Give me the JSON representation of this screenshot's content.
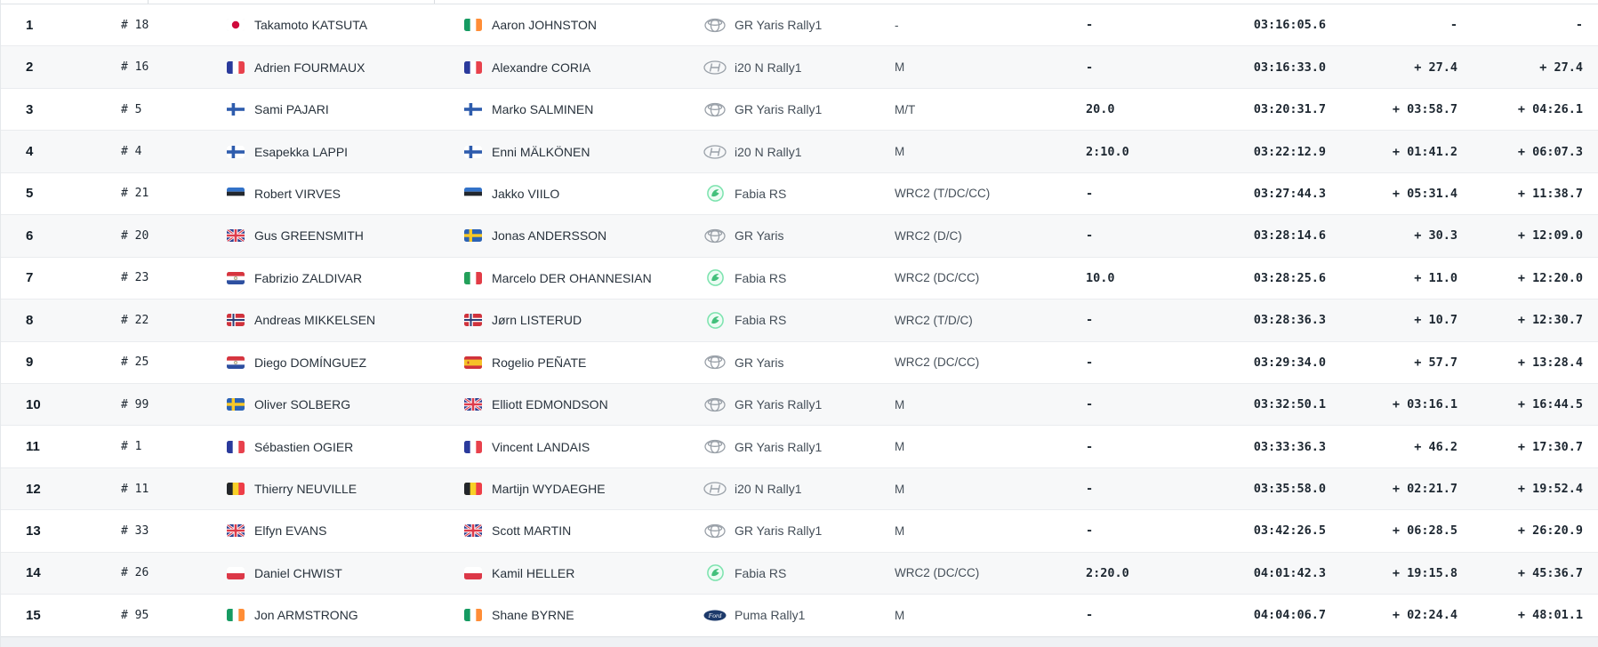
{
  "table": {
    "columns": [
      "position",
      "car_number",
      "driver",
      "co_driver",
      "car",
      "class",
      "penalty",
      "time",
      "gap_previous",
      "gap_leader"
    ],
    "rows": [
      {
        "position": "1",
        "car_number": "# 18",
        "driver": {
          "flag": "jp",
          "name": "Takamoto KATSUTA"
        },
        "co_driver": {
          "flag": "ie",
          "name": "Aaron JOHNSTON"
        },
        "car": {
          "make": "toyota",
          "model": "GR Yaris Rally1"
        },
        "class": "-",
        "penalty": "-",
        "time": "03:16:05.6",
        "gap_previous": "-",
        "gap_leader": "-"
      },
      {
        "position": "2",
        "car_number": "# 16",
        "driver": {
          "flag": "fr",
          "name": "Adrien FOURMAUX"
        },
        "co_driver": {
          "flag": "fr",
          "name": "Alexandre CORIA"
        },
        "car": {
          "make": "hyundai",
          "model": "i20 N Rally1"
        },
        "class": "M",
        "penalty": "-",
        "time": "03:16:33.0",
        "gap_previous": "+ 27.4",
        "gap_leader": "+ 27.4"
      },
      {
        "position": "3",
        "car_number": "# 5",
        "driver": {
          "flag": "fi",
          "name": "Sami PAJARI"
        },
        "co_driver": {
          "flag": "fi",
          "name": "Marko SALMINEN"
        },
        "car": {
          "make": "toyota",
          "model": "GR Yaris Rally1"
        },
        "class": "M/T",
        "penalty": "20.0",
        "time": "03:20:31.7",
        "gap_previous": "+ 03:58.7",
        "gap_leader": "+ 04:26.1"
      },
      {
        "position": "4",
        "car_number": "# 4",
        "driver": {
          "flag": "fi",
          "name": "Esapekka LAPPI"
        },
        "co_driver": {
          "flag": "fi",
          "name": "Enni MÄLKÖNEN"
        },
        "car": {
          "make": "hyundai",
          "model": "i20 N Rally1"
        },
        "class": "M",
        "penalty": "2:10.0",
        "time": "03:22:12.9",
        "gap_previous": "+ 01:41.2",
        "gap_leader": "+ 06:07.3"
      },
      {
        "position": "5",
        "car_number": "# 21",
        "driver": {
          "flag": "ee",
          "name": "Robert VIRVES"
        },
        "co_driver": {
          "flag": "ee",
          "name": "Jakko VIILO"
        },
        "car": {
          "make": "skoda",
          "model": "Fabia RS"
        },
        "class": "WRC2 (T/DC/CC)",
        "penalty": "-",
        "time": "03:27:44.3",
        "gap_previous": "+ 05:31.4",
        "gap_leader": "+ 11:38.7"
      },
      {
        "position": "6",
        "car_number": "# 20",
        "driver": {
          "flag": "gb",
          "name": "Gus GREENSMITH"
        },
        "co_driver": {
          "flag": "se",
          "name": "Jonas ANDERSSON"
        },
        "car": {
          "make": "toyota",
          "model": "GR Yaris"
        },
        "class": "WRC2 (D/C)",
        "penalty": "-",
        "time": "03:28:14.6",
        "gap_previous": "+ 30.3",
        "gap_leader": "+ 12:09.0"
      },
      {
        "position": "7",
        "car_number": "# 23",
        "driver": {
          "flag": "py",
          "name": "Fabrizio ZALDIVAR"
        },
        "co_driver": {
          "flag": "it",
          "name": "Marcelo DER OHANNESIAN"
        },
        "car": {
          "make": "skoda",
          "model": "Fabia RS"
        },
        "class": "WRC2 (DC/CC)",
        "penalty": "10.0",
        "time": "03:28:25.6",
        "gap_previous": "+ 11.0",
        "gap_leader": "+ 12:20.0"
      },
      {
        "position": "8",
        "car_number": "# 22",
        "driver": {
          "flag": "no",
          "name": "Andreas MIKKELSEN"
        },
        "co_driver": {
          "flag": "no",
          "name": "Jørn LISTERUD"
        },
        "car": {
          "make": "skoda",
          "model": "Fabia RS"
        },
        "class": "WRC2 (T/D/C)",
        "penalty": "-",
        "time": "03:28:36.3",
        "gap_previous": "+ 10.7",
        "gap_leader": "+ 12:30.7"
      },
      {
        "position": "9",
        "car_number": "# 25",
        "driver": {
          "flag": "py",
          "name": "Diego DOMÍNGUEZ"
        },
        "co_driver": {
          "flag": "es",
          "name": "Rogelio PEÑATE"
        },
        "car": {
          "make": "toyota",
          "model": "GR Yaris"
        },
        "class": "WRC2 (DC/CC)",
        "penalty": "-",
        "time": "03:29:34.0",
        "gap_previous": "+ 57.7",
        "gap_leader": "+ 13:28.4"
      },
      {
        "position": "10",
        "car_number": "# 99",
        "driver": {
          "flag": "se",
          "name": "Oliver SOLBERG"
        },
        "co_driver": {
          "flag": "gb",
          "name": "Elliott EDMONDSON"
        },
        "car": {
          "make": "toyota",
          "model": "GR Yaris Rally1"
        },
        "class": "M",
        "penalty": "-",
        "time": "03:32:50.1",
        "gap_previous": "+ 03:16.1",
        "gap_leader": "+ 16:44.5"
      },
      {
        "position": "11",
        "car_number": "# 1",
        "driver": {
          "flag": "fr",
          "name": "Sébastien OGIER"
        },
        "co_driver": {
          "flag": "fr",
          "name": "Vincent LANDAIS"
        },
        "car": {
          "make": "toyota",
          "model": "GR Yaris Rally1"
        },
        "class": "M",
        "penalty": "-",
        "time": "03:33:36.3",
        "gap_previous": "+ 46.2",
        "gap_leader": "+ 17:30.7"
      },
      {
        "position": "12",
        "car_number": "# 11",
        "driver": {
          "flag": "be",
          "name": "Thierry NEUVILLE"
        },
        "co_driver": {
          "flag": "be",
          "name": "Martijn WYDAEGHE"
        },
        "car": {
          "make": "hyundai",
          "model": "i20 N Rally1"
        },
        "class": "M",
        "penalty": "-",
        "time": "03:35:58.0",
        "gap_previous": "+ 02:21.7",
        "gap_leader": "+ 19:52.4"
      },
      {
        "position": "13",
        "car_number": "# 33",
        "driver": {
          "flag": "gb",
          "name": "Elfyn EVANS"
        },
        "co_driver": {
          "flag": "gb",
          "name": "Scott MARTIN"
        },
        "car": {
          "make": "toyota",
          "model": "GR Yaris Rally1"
        },
        "class": "M",
        "penalty": "-",
        "time": "03:42:26.5",
        "gap_previous": "+ 06:28.5",
        "gap_leader": "+ 26:20.9"
      },
      {
        "position": "14",
        "car_number": "# 26",
        "driver": {
          "flag": "pl",
          "name": "Daniel CHWIST"
        },
        "co_driver": {
          "flag": "pl",
          "name": "Kamil HELLER"
        },
        "car": {
          "make": "skoda",
          "model": "Fabia RS"
        },
        "class": "WRC2 (DC/CC)",
        "penalty": "2:20.0",
        "time": "04:01:42.3",
        "gap_previous": "+ 19:15.8",
        "gap_leader": "+ 45:36.7"
      },
      {
        "position": "15",
        "car_number": "# 95",
        "driver": {
          "flag": "ie",
          "name": "Jon ARMSTRONG"
        },
        "co_driver": {
          "flag": "ie",
          "name": "Shane BYRNE"
        },
        "car": {
          "make": "ford",
          "model": "Puma Rally1"
        },
        "class": "M",
        "penalty": "-",
        "time": "04:04:06.7",
        "gap_previous": "+ 02:24.4",
        "gap_leader": "+ 48:01.1"
      }
    ]
  },
  "colors": {
    "row_alt": "#f7f8f9",
    "row_border": "#eaecef",
    "text_dark": "#1d2731",
    "text_gray": "#454f59",
    "position_text": "#121c26",
    "skoda_green": "#43c07c",
    "ford_blue": "#1d3a6b",
    "toyota_gray": "#99a0a8",
    "hyundai_gray": "#99a0a8",
    "japan_red": "#cf0a3c"
  }
}
